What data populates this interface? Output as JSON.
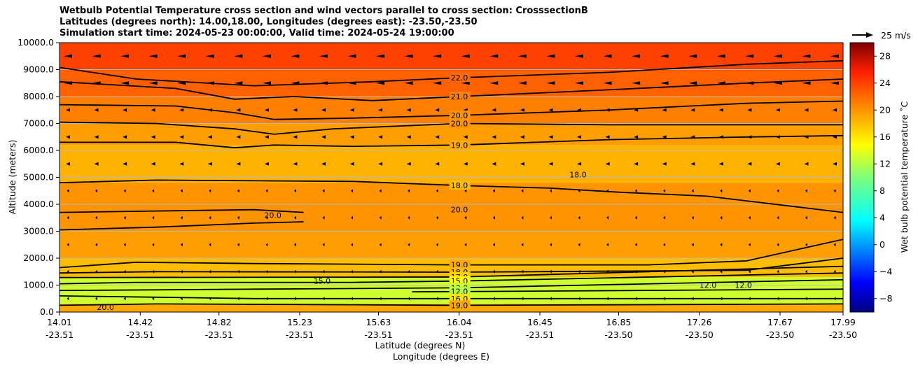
{
  "title_lines": [
    "Wetbulb Potential Temperature cross section and wind vectors parallel to cross section: CrosssectionB",
    "Latitudes (degrees north): 14.00,18.00, Longitudes (degrees east): -23.50,-23.50",
    "Simulation start time: 2024-05-23 00:00:00, Valid time: 2024-05-24 19:00:00"
  ],
  "chart_data": {
    "type": "heatmap",
    "title": "Wetbulb Potential Temperature cross section and wind vectors parallel to cross section: CrosssectionB",
    "xlabel_lat": "Latitude (degrees N)",
    "xlabel_lon": "Longitude (degrees E)",
    "ylabel": "Altitude (meters)",
    "colorbar_label": "Wet bulb potential temperature $^\\circ$C",
    "colorbar_display_label": "Wet bulb potential temperature ˚C",
    "colorbar_range": [
      -10,
      30
    ],
    "colorbar_ticks": [
      "−8",
      "−4",
      "0",
      "4",
      "8",
      "12",
      "16",
      "20",
      "24",
      "28"
    ],
    "colorbar_tick_values": [
      -8,
      -4,
      0,
      4,
      8,
      12,
      16,
      20,
      24,
      28
    ],
    "ylim": [
      0,
      10000
    ],
    "yticks": [
      "0.0",
      "1000.0",
      "2000.0",
      "3000.0",
      "4000.0",
      "5000.0",
      "6000.0",
      "7000.0",
      "8000.0",
      "9000.0",
      "10000.0"
    ],
    "ytick_values": [
      0,
      1000,
      2000,
      3000,
      4000,
      5000,
      6000,
      7000,
      8000,
      9000,
      10000
    ],
    "xlim": [
      14.01,
      17.99
    ],
    "xtick_values": [
      14.01,
      14.42,
      14.82,
      15.23,
      15.63,
      16.04,
      16.45,
      16.85,
      17.26,
      17.67,
      17.99
    ],
    "xticks_lat": [
      "14.01",
      "14.42",
      "14.82",
      "15.23",
      "15.63",
      "16.04",
      "16.45",
      "16.85",
      "17.26",
      "17.67",
      "17.99"
    ],
    "xticks_lon": [
      "-23.51",
      "-23.51",
      "-23.51",
      "-23.51",
      "-23.51",
      "-23.51",
      "-23.51",
      "-23.50",
      "-23.50",
      "-23.50",
      "-23.50"
    ],
    "quiver_key": "25 m/s",
    "layers": [
      {
        "alt_from": 0,
        "alt_to": 300,
        "temp": 19
      },
      {
        "alt_from": 300,
        "alt_to": 1300,
        "temp": 13
      },
      {
        "alt_from": 1300,
        "alt_to": 2000,
        "temp": 18
      },
      {
        "alt_from": 2000,
        "alt_to": 3000,
        "temp": 19.5
      },
      {
        "alt_from": 3000,
        "alt_to": 4800,
        "temp": 20
      },
      {
        "alt_from": 4800,
        "alt_to": 6200,
        "temp": 18.5
      },
      {
        "alt_from": 6200,
        "alt_to": 7000,
        "temp": 19.5
      },
      {
        "alt_from": 7000,
        "alt_to": 8000,
        "temp": 21
      },
      {
        "alt_from": 8000,
        "alt_to": 9000,
        "temp": 22.5
      },
      {
        "alt_from": 9000,
        "alt_to": 10000,
        "temp": 24
      }
    ],
    "contours": [
      {
        "level": 22.0,
        "label": "22.0",
        "points": [
          [
            14.01,
            9080
          ],
          [
            14.4,
            8650
          ],
          [
            15.0,
            8400
          ],
          [
            15.6,
            8550
          ],
          [
            16.04,
            8700
          ],
          [
            16.8,
            8900
          ],
          [
            17.5,
            9200
          ],
          [
            17.99,
            9330
          ]
        ]
      },
      {
        "level": 21.0,
        "label": "21.0",
        "points": [
          [
            14.01,
            8550
          ],
          [
            14.6,
            8300
          ],
          [
            14.9,
            7900
          ],
          [
            15.2,
            8000
          ],
          [
            15.6,
            7850
          ],
          [
            16.04,
            8000
          ],
          [
            16.8,
            8250
          ],
          [
            17.5,
            8500
          ],
          [
            17.99,
            8650
          ]
        ]
      },
      {
        "level": 20.0,
        "label": "20.0",
        "points": [
          [
            14.01,
            7700
          ],
          [
            14.6,
            7650
          ],
          [
            14.9,
            7400
          ],
          [
            15.1,
            7150
          ],
          [
            15.5,
            7200
          ],
          [
            16.04,
            7300
          ],
          [
            16.8,
            7500
          ],
          [
            17.5,
            7750
          ],
          [
            17.99,
            7830
          ]
        ]
      },
      {
        "level": 20.0,
        "label": "20.0",
        "points": [
          [
            14.01,
            7050
          ],
          [
            14.5,
            7000
          ],
          [
            14.9,
            6800
          ],
          [
            15.1,
            6600
          ],
          [
            15.4,
            6800
          ],
          [
            16.04,
            7000
          ],
          [
            16.8,
            6950
          ],
          [
            17.5,
            6950
          ],
          [
            17.99,
            6950
          ]
        ]
      },
      {
        "level": 19.0,
        "label": "19.0",
        "points": [
          [
            14.01,
            6300
          ],
          [
            14.6,
            6300
          ],
          [
            14.9,
            6100
          ],
          [
            15.1,
            6200
          ],
          [
            15.5,
            6150
          ],
          [
            16.04,
            6200
          ],
          [
            16.8,
            6400
          ],
          [
            17.5,
            6500
          ],
          [
            17.99,
            6550
          ]
        ]
      },
      {
        "level": 18.0,
        "label": "18.0",
        "points": [
          [
            14.01,
            4800
          ],
          [
            14.5,
            4900
          ],
          [
            15.5,
            4850
          ],
          [
            16.04,
            4700
          ],
          [
            16.5,
            4600
          ],
          [
            16.85,
            4450
          ],
          [
            17.3,
            4300
          ],
          [
            17.99,
            3700
          ]
        ]
      },
      {
        "level": 20.0,
        "label": "20.0",
        "points": [
          [
            14.01,
            3700
          ],
          [
            14.5,
            3750
          ],
          [
            15.0,
            3800
          ],
          [
            15.25,
            3700
          ]
        ]
      },
      {
        "level": 20.0,
        "label": "",
        "points": [
          [
            14.01,
            3050
          ],
          [
            14.5,
            3150
          ],
          [
            15.0,
            3300
          ],
          [
            15.25,
            3350
          ]
        ]
      },
      {
        "level": 19.0,
        "label": "19.0",
        "points": [
          [
            14.01,
            1650
          ],
          [
            14.4,
            1850
          ],
          [
            15.0,
            1800
          ],
          [
            16.04,
            1750
          ],
          [
            17.0,
            1750
          ],
          [
            17.5,
            1900
          ],
          [
            17.99,
            2700
          ]
        ]
      },
      {
        "level": 18.0,
        "label": "18.0",
        "points": [
          [
            14.01,
            1450
          ],
          [
            14.5,
            1500
          ],
          [
            16.04,
            1480
          ],
          [
            17.5,
            1550
          ],
          [
            17.99,
            2000
          ]
        ]
      },
      {
        "level": 17.0,
        "label": "17.0",
        "points": [
          [
            14.01,
            1280
          ],
          [
            16.04,
            1300
          ],
          [
            17.99,
            1700
          ]
        ]
      },
      {
        "level": 15.0,
        "label": "15.0",
        "points": [
          [
            14.01,
            1050
          ],
          [
            14.4,
            1100
          ],
          [
            15.5,
            1100
          ],
          [
            16.04,
            1150
          ],
          [
            17.99,
            1450
          ]
        ]
      },
      {
        "level": 13.0,
        "label": "13.0",
        "points": [
          [
            14.01,
            800
          ],
          [
            15.0,
            850
          ],
          [
            16.04,
            900
          ],
          [
            17.99,
            1200
          ]
        ]
      },
      {
        "level": 12.0,
        "label": "12.0",
        "points": [
          [
            15.8,
            750
          ],
          [
            16.5,
            780
          ],
          [
            17.99,
            850
          ]
        ]
      },
      {
        "level": 16.0,
        "label": "16.0",
        "points": [
          [
            14.01,
            600
          ],
          [
            14.5,
            550
          ],
          [
            15.0,
            500
          ],
          [
            16.04,
            500
          ],
          [
            17.99,
            500
          ]
        ]
      },
      {
        "level": 19.0,
        "label": "19.0",
        "points": [
          [
            14.01,
            250
          ],
          [
            14.5,
            300
          ],
          [
            15.2,
            280
          ],
          [
            16.04,
            250
          ],
          [
            17.99,
            300
          ]
        ]
      }
    ],
    "extra_labels": [
      {
        "text": "20.0",
        "x": 15.05,
        "y": 3500
      },
      {
        "text": "18.0",
        "x": 16.6,
        "y": 5000
      },
      {
        "text": "15.0",
        "x": 15.3,
        "y": 1050
      },
      {
        "text": "12.0",
        "x": 17.26,
        "y": 900
      },
      {
        "text": "12.0",
        "x": 17.44,
        "y": 900
      },
      {
        "text": "20.0",
        "x": 14.2,
        "y": 80
      }
    ]
  }
}
